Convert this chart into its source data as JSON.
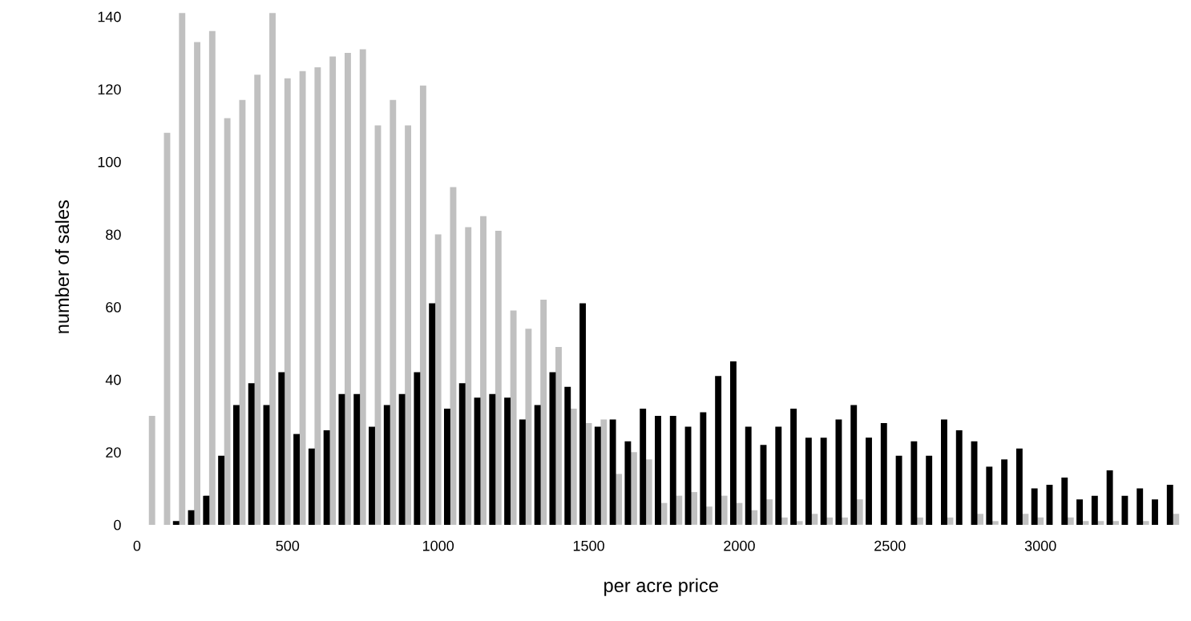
{
  "chart_data": {
    "type": "bar",
    "xlabel": "per acre price",
    "ylabel": "number of sales",
    "xlim": [
      0,
      3480
    ],
    "xticks": [
      0,
      500,
      1000,
      1500,
      2000,
      2500,
      3000
    ],
    "ylim": [
      0,
      142
    ],
    "yticks": [
      0,
      20,
      40,
      60,
      80,
      100,
      120,
      140
    ],
    "grid": false,
    "legend": false,
    "series": [
      {
        "color": "#c0c0c0",
        "x": [
          50,
          100,
          150,
          200,
          250,
          300,
          350,
          400,
          450,
          500,
          550,
          600,
          650,
          700,
          750,
          800,
          850,
          900,
          950,
          1000,
          1050,
          1100,
          1150,
          1200,
          1250,
          1300,
          1350,
          1400,
          1450,
          1500,
          1550,
          1600,
          1650,
          1700,
          1750,
          1800,
          1850,
          1900,
          1950,
          2000,
          2050,
          2100,
          2150,
          2200,
          2250,
          2300,
          2350,
          2400,
          2450,
          2500,
          2550,
          2600,
          2650,
          2700,
          2750,
          2800,
          2850,
          2900,
          2950,
          3000,
          3050,
          3100,
          3150,
          3200,
          3250,
          3300,
          3350,
          3400,
          3450
        ],
        "values": [
          30,
          108,
          141,
          133,
          136,
          112,
          117,
          124,
          141,
          123,
          125,
          126,
          129,
          130,
          131,
          110,
          117,
          110,
          121,
          80,
          93,
          82,
          85,
          81,
          59,
          54,
          62,
          49,
          32,
          28,
          29,
          14,
          20,
          18,
          6,
          8,
          9,
          5,
          8,
          6,
          4,
          7,
          2,
          1,
          3,
          2,
          2,
          7,
          0,
          0,
          0,
          2,
          0,
          2,
          0,
          3,
          1,
          0,
          3,
          2,
          0,
          2,
          1,
          1,
          1,
          0,
          1,
          0,
          3
        ]
      },
      {
        "color": "#000000",
        "x": [
          130,
          180,
          230,
          280,
          330,
          380,
          430,
          480,
          530,
          580,
          630,
          680,
          730,
          780,
          830,
          880,
          930,
          980,
          1030,
          1080,
          1130,
          1180,
          1230,
          1280,
          1330,
          1380,
          1430,
          1480,
          1530,
          1580,
          1630,
          1680,
          1730,
          1780,
          1830,
          1880,
          1930,
          1980,
          2030,
          2080,
          2130,
          2180,
          2230,
          2280,
          2330,
          2380,
          2430,
          2480,
          2530,
          2580,
          2630,
          2680,
          2730,
          2780,
          2830,
          2880,
          2930,
          2980,
          3030,
          3080,
          3130,
          3180,
          3230,
          3280,
          3330,
          3380,
          3430
        ],
        "values": [
          1,
          4,
          8,
          19,
          33,
          39,
          33,
          42,
          25,
          21,
          26,
          36,
          36,
          27,
          33,
          36,
          42,
          61,
          32,
          39,
          35,
          36,
          35,
          29,
          33,
          42,
          38,
          61,
          27,
          29,
          23,
          32,
          30,
          30,
          27,
          31,
          41,
          45,
          27,
          22,
          27,
          32,
          24,
          24,
          29,
          33,
          24,
          28,
          19,
          23,
          19,
          29,
          26,
          23,
          16,
          18,
          21,
          10,
          11,
          13,
          7,
          8,
          15,
          8,
          10,
          7,
          11
        ]
      }
    ]
  }
}
